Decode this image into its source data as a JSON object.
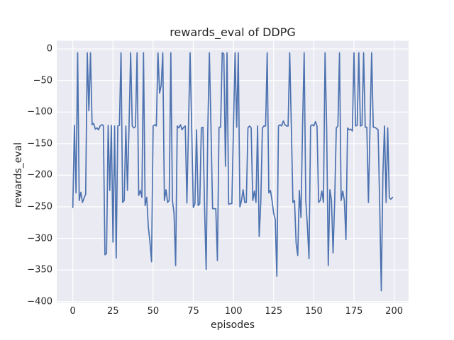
{
  "chart_data": {
    "type": "line",
    "title": "rewards_eval of DDPG",
    "xlabel": "episodes",
    "ylabel": "rewards_eval",
    "x_is_index": true,
    "x_ticks": [
      0,
      25,
      50,
      75,
      100,
      125,
      150,
      175,
      200
    ],
    "x_tick_labels": [
      "0",
      "25",
      "50",
      "75",
      "100",
      "125",
      "150",
      "175",
      "200"
    ],
    "y_ticks": [
      0,
      -50,
      -100,
      -150,
      -200,
      -250,
      -300,
      -350,
      -400
    ],
    "y_tick_labels": [
      "0",
      "−50",
      "−100",
      "−150",
      "−200",
      "−250",
      "−300",
      "−350",
      "−400"
    ],
    "xlim": [
      -10,
      209
    ],
    "ylim": [
      -402,
      13
    ],
    "grid": true,
    "legend": "none",
    "theme": {
      "line_color": "#4C72B0",
      "plot_bg": "#EAEAF2",
      "grid_color": "#FFFFFF",
      "text_color": "#262626",
      "figure_bg": "#FFFFFF"
    },
    "values": [
      -251,
      -121,
      -228,
      -6,
      -240,
      -227,
      -243,
      -236,
      -230,
      -6,
      -98,
      -6,
      -120,
      -118,
      -127,
      -125,
      -128,
      -122,
      -120,
      -121,
      -326,
      -324,
      -121,
      -224,
      -121,
      -306,
      -122,
      -331,
      -122,
      -121,
      -6,
      -243,
      -240,
      -122,
      -224,
      -122,
      -6,
      -122,
      -125,
      -123,
      -6,
      -232,
      -224,
      -235,
      -6,
      -248,
      -235,
      -282,
      -305,
      -337,
      -122,
      -120,
      -122,
      -6,
      -70,
      -58,
      -6,
      -240,
      -223,
      -243,
      -240,
      -6,
      -240,
      -260,
      -343,
      -122,
      -125,
      -120,
      -128,
      -124,
      -122,
      -244,
      -122,
      -6,
      -127,
      -251,
      -245,
      -128,
      -248,
      -245,
      -125,
      -124,
      -251,
      -349,
      -130,
      -6,
      -125,
      -253,
      -253,
      -253,
      -335,
      -124,
      -124,
      -6,
      -8,
      -186,
      -6,
      -246,
      -245,
      -245,
      -124,
      -6,
      -124,
      -6,
      -250,
      -240,
      -223,
      -243,
      -243,
      -125,
      -122,
      -125,
      -240,
      -225,
      -243,
      -122,
      -297,
      -243,
      -125,
      -122,
      -122,
      -6,
      -228,
      -224,
      -240,
      -260,
      -270,
      -360,
      -122,
      -120,
      -122,
      -114,
      -120,
      -122,
      -122,
      -6,
      -122,
      -243,
      -240,
      -308,
      -327,
      -224,
      -267,
      -122,
      -6,
      -240,
      -280,
      -332,
      -122,
      -120,
      -122,
      -115,
      -122,
      -243,
      -240,
      -225,
      -243,
      -6,
      -125,
      -343,
      -223,
      -240,
      -323,
      -240,
      -125,
      -122,
      -6,
      -240,
      -225,
      -240,
      -302,
      -125,
      -128,
      -127,
      -130,
      -6,
      -122,
      -121,
      -6,
      -122,
      -121,
      -6,
      -124,
      -124,
      -243,
      -122,
      -6,
      -124,
      -124,
      -126,
      -128,
      -245,
      -383,
      -198,
      -122,
      -243,
      -125,
      -236,
      -238,
      -235
    ]
  }
}
